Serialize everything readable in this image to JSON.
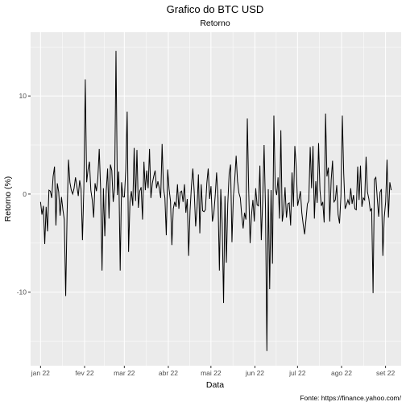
{
  "chart_data": {
    "type": "line",
    "title": "Grafico do BTC USD",
    "subtitle": "Retorno",
    "xlabel": "Data",
    "ylabel": "Retorno (%)",
    "caption": "Fonte: https://finance.yahoo.com/",
    "x_range": [
      "2021-12-25",
      "2022-09-12"
    ],
    "x_start": "2022-01-01",
    "x_end": "2022-09-05",
    "ylim": [
      -17.5,
      16.5
    ],
    "x_ticks": [
      {
        "date": "2022-01-01",
        "label": "jan 22"
      },
      {
        "date": "2022-02-01",
        "label": "fev 22"
      },
      {
        "date": "2022-03-01",
        "label": "mar 22"
      },
      {
        "date": "2022-04-01",
        "label": "abr 22"
      },
      {
        "date": "2022-05-01",
        "label": "mai 22"
      },
      {
        "date": "2022-06-01",
        "label": "jun 22"
      },
      {
        "date": "2022-07-01",
        "label": "jul 22"
      },
      {
        "date": "2022-08-01",
        "label": "ago 22"
      },
      {
        "date": "2022-09-01",
        "label": "set 22"
      }
    ],
    "y_ticks": [
      {
        "value": 10,
        "label": "10"
      },
      {
        "value": 0,
        "label": "0"
      },
      {
        "value": -10,
        "label": "-10"
      }
    ],
    "grid": true,
    "line_color": "#000000",
    "panel_color": "#ebebeb",
    "grid_color": "#ffffff",
    "series": [
      {
        "values": [
          -0.8,
          -2.1,
          -1.2,
          -5.1,
          -1.3,
          -3.8,
          0.4,
          0.3,
          -0.4,
          1.8,
          2.8,
          -3.2,
          1.1,
          0.2,
          -2.2,
          -0.3,
          -1.6,
          -2.6,
          -10.4,
          -2.0,
          3.5,
          1.2,
          0.4,
          0.0,
          0.6,
          1.7,
          0.8,
          -0.2,
          1.4,
          0.5,
          -4.7,
          0.6,
          11.7,
          1.2,
          2.5,
          3.3,
          0.4,
          -0.6,
          -2.4,
          1.1,
          0.3,
          1.6,
          4.6,
          0.5,
          -7.8,
          0.6,
          -4.3,
          0.3,
          2.6,
          -2.5,
          3.0,
          2.4,
          -0.8,
          0.6,
          14.6,
          -0.1,
          2.3,
          -7.8,
          1.2,
          -0.3,
          -0.3,
          2.5,
          8.4,
          -5.9,
          -0.8,
          0.3,
          -1.2,
          4.7,
          -0.7,
          4.5,
          -1.4,
          0.3,
          0.7,
          -2.6,
          3.3,
          0.4,
          2.4,
          0.6,
          4.6,
          -0.4,
          1.1,
          1.8,
          2.4,
          0.6,
          1.3,
          0.6,
          -0.4,
          5.1,
          0.6,
          -0.4,
          -4.2,
          2.5,
          0.5,
          -0.7,
          -5.2,
          -1.5,
          -0.8,
          -1.3,
          1.0,
          -1.5,
          0.2,
          0.3,
          -0.8,
          1.0,
          -1.9,
          -0.5,
          -6.3,
          -1.7,
          0.8,
          2.6,
          0.2,
          -3.3,
          -1.4,
          2.0,
          -4.0,
          1.0,
          -1.7,
          -1.8,
          -1.6,
          1.1,
          2.6,
          -0.5,
          0.8,
          -2.8,
          -2.0,
          -0.2,
          2.2,
          -0.4,
          -7.8,
          0.5,
          -3.0,
          -11.1,
          -0.2,
          -7.0,
          -1.0,
          2.1,
          3.0,
          -4.9,
          -0.3,
          1.5,
          3.9,
          1.3,
          0.1,
          -0.4,
          -2.2,
          -3.5,
          -1.9,
          -2.6,
          7.7,
          0.3,
          -5.0,
          -2.1,
          -0.6,
          -2.8,
          0.6,
          -1.1,
          -1.2,
          2.9,
          -4.7,
          -0.7,
          5.0,
          -1.4,
          -16.0,
          0.5,
          -9.7,
          0.4,
          -7.1,
          8.0,
          0.6,
          -0.1,
          1.7,
          -2.5,
          6.5,
          -2.8,
          -1.7,
          0.7,
          -2.4,
          -1.0,
          -0.9,
          -3.2,
          2.2,
          -1.3,
          4.9,
          2.8,
          -1.2,
          -0.5,
          0.3,
          -1.9,
          -3.1,
          -4.1,
          -2.6,
          -1.0,
          -0.7,
          4.8,
          0.6,
          4.9,
          -2.5,
          1.3,
          -0.9,
          5.2,
          0.4,
          -1.2,
          -0.8,
          -2.9,
          8.2,
          1.8,
          2.7,
          -2.8,
          1.4,
          3.4,
          -0.8,
          -0.6,
          0.9,
          -2.1,
          -3.0,
          -0.2,
          8.0,
          2.1,
          -1.5,
          -1.1,
          -0.6,
          -1.1,
          0.6,
          -1.0,
          -0.1,
          -1.5,
          -1.6,
          2.8,
          -0.6,
          2.9,
          -1.3,
          -0.4,
          -0.6,
          3.8,
          0.2,
          -0.5,
          -1.7,
          -1.5,
          -10.1,
          1.5,
          1.7,
          -0.4,
          -2.3,
          0.2,
          0.5,
          -6.3,
          -2.4,
          -0.8,
          3.5,
          -2.4,
          1.2,
          0.4
        ]
      }
    ]
  }
}
